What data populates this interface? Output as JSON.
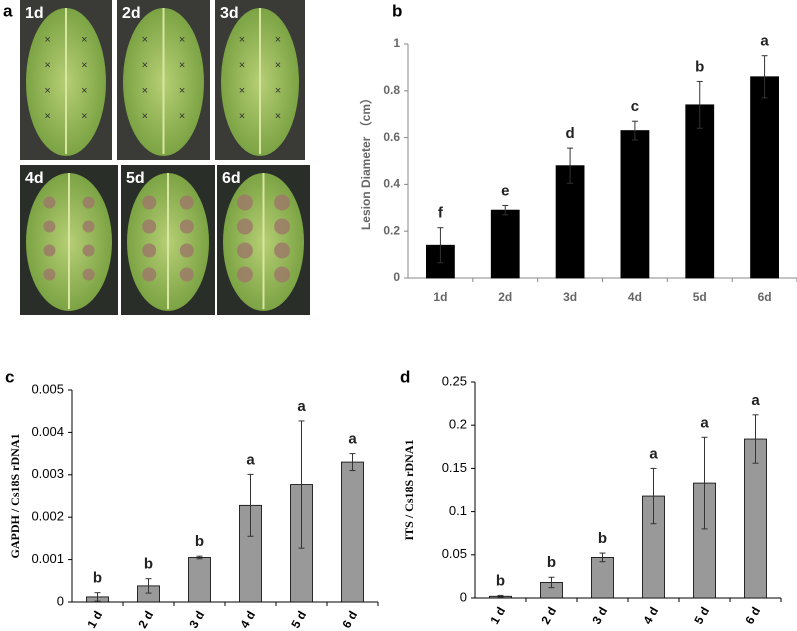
{
  "panel_a": {
    "label": "a",
    "photos": [
      "1d",
      "2d",
      "3d",
      "4d",
      "5d",
      "6d"
    ]
  },
  "chart_data": [
    {
      "type": "bar",
      "panel_label": "b",
      "y_label": "Lesion Diameter （cm）",
      "categories": [
        "1d",
        "2d",
        "3d",
        "4d",
        "5d",
        "6d"
      ],
      "values": [
        0.14,
        0.29,
        0.48,
        0.63,
        0.74,
        0.86
      ],
      "error": [
        0.075,
        0.02,
        0.075,
        0.04,
        0.1,
        0.09
      ],
      "letters": [
        "f",
        "e",
        "d",
        "c",
        "b",
        "a"
      ],
      "color": "#000000",
      "ylim": [
        0,
        1
      ],
      "yticks": [
        0,
        0.2,
        0.4,
        0.6,
        0.8,
        1
      ]
    },
    {
      "type": "bar",
      "panel_label": "c",
      "y_label": "GAPDH / Cs18S rDNA1",
      "categories": [
        "1 d",
        "2 d",
        "3 d",
        "4 d",
        "5 d",
        "6 d"
      ],
      "values": [
        0.00012,
        0.00038,
        0.00105,
        0.00228,
        0.00277,
        0.0033
      ],
      "error": [
        0.0001,
        0.00017,
        3e-05,
        0.00073,
        0.0015,
        0.0002
      ],
      "letters": [
        "b",
        "b",
        "b",
        "a",
        "a",
        "a"
      ],
      "color": "#999999",
      "ylim": [
        0,
        0.005
      ],
      "yticks": [
        0,
        0.001,
        0.002,
        0.003,
        0.004,
        0.005
      ]
    },
    {
      "type": "bar",
      "panel_label": "d",
      "y_label": "ITS / Cs18S rDNA1",
      "categories": [
        "1 d",
        "2 d",
        "3 d",
        "4 d",
        "5 d",
        "6 d"
      ],
      "values": [
        0.002,
        0.018,
        0.047,
        0.118,
        0.133,
        0.184
      ],
      "error": [
        0.001,
        0.006,
        0.005,
        0.032,
        0.053,
        0.028
      ],
      "letters": [
        "b",
        "b",
        "b",
        "a",
        "a",
        "a"
      ],
      "color": "#999999",
      "ylim": [
        0,
        0.25
      ],
      "yticks": [
        0,
        0.05,
        0.1,
        0.15,
        0.2,
        0.25
      ]
    }
  ]
}
